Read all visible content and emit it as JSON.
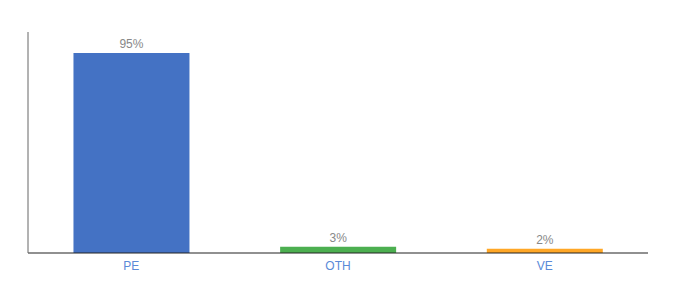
{
  "chart_data": {
    "type": "bar",
    "categories": [
      "PE",
      "OTH",
      "VE"
    ],
    "values": [
      95,
      3,
      2
    ],
    "value_labels": [
      "95%",
      "3%",
      "2%"
    ],
    "colors": [
      "#4472c4",
      "#4caf50",
      "#ffa726"
    ],
    "ylim": [
      0,
      105
    ],
    "yticks": [],
    "grid": false,
    "data_labels": true,
    "tick_labels": "x"
  }
}
